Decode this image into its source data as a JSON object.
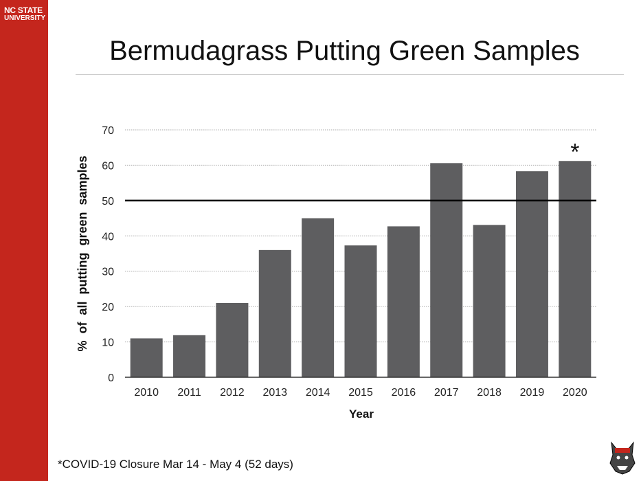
{
  "brand": {
    "line1": "NC STATE",
    "line2": "UNIVERSITY"
  },
  "slide": {
    "title": "Bermudagrass Putting Green Samples",
    "footnote": "*COVID-19 Closure Mar 14 - May 4 (52 days)"
  },
  "colors": {
    "sidebar": "#c4261d",
    "bar": "#5e5e60",
    "reference_line": "#000000"
  },
  "chart_data": {
    "type": "bar",
    "title": "Bermudagrass Putting Green Samples",
    "xlabel": "Year",
    "ylabel": "% of all putting green samples",
    "categories": [
      "2010",
      "2011",
      "2012",
      "2013",
      "2014",
      "2015",
      "2016",
      "2017",
      "2018",
      "2019",
      "2020"
    ],
    "values": [
      11.0,
      11.9,
      21.0,
      36.0,
      45.0,
      37.3,
      42.7,
      60.6,
      43.1,
      58.3,
      61.2
    ],
    "ylim": [
      0,
      70
    ],
    "yticks": [
      "0",
      "10",
      "20",
      "30",
      "40",
      "50",
      "60",
      "70"
    ],
    "grid": true,
    "reference_line": 50,
    "annotations": [
      {
        "category": "2020",
        "text": "*"
      }
    ]
  }
}
